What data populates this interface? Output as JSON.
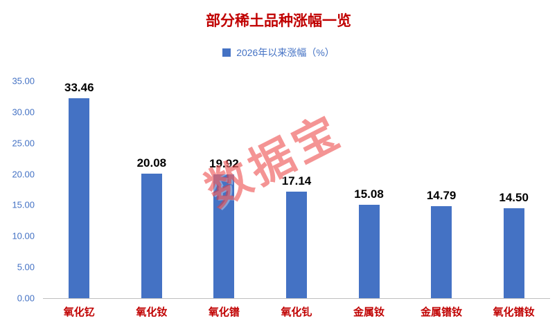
{
  "chart_data": {
    "type": "bar",
    "title": "部分稀土品种涨幅一览",
    "legend": "2026年以来涨幅（%）",
    "categories": [
      "氧化钇",
      "氧化钕",
      "氧化镨",
      "氧化钆",
      "金属钕",
      "金属镨钕",
      "氧化镨钕"
    ],
    "values": [
      33.46,
      20.08,
      19.92,
      17.14,
      15.08,
      14.79,
      14.5
    ],
    "value_labels": [
      "33.46",
      "20.08",
      "19.92",
      "17.14",
      "15.08",
      "14.79",
      "14.50"
    ],
    "xlabel": "",
    "ylabel": "",
    "ylim": [
      0,
      35
    ],
    "ytick_step": 5,
    "ytick_labels": [
      "0.00",
      "5.00",
      "10.00",
      "15.00",
      "20.00",
      "25.00",
      "30.00",
      "35.00"
    ],
    "grid": false,
    "legend_position": "top",
    "bar_color": "#4472C4"
  },
  "watermark": {
    "text": "数据宝"
  },
  "colors": {
    "title": "#C00000",
    "axis_labels": "#4472C4",
    "category_labels": "#C00000",
    "bar": "#4472C4",
    "watermark": "#EB3C3C"
  }
}
